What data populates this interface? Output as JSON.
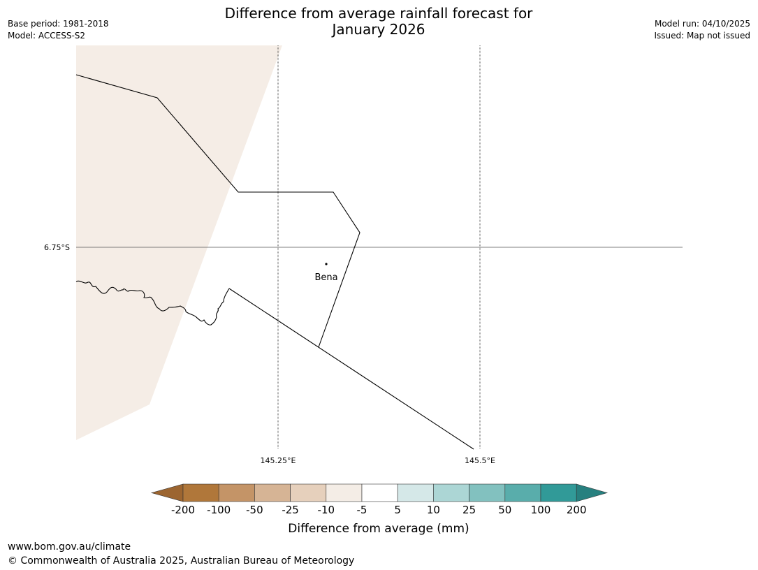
{
  "header": {
    "title_line1": "Difference from average rainfall forecast for",
    "title_line2": "January 2026",
    "base_period": "Base period: 1981-2018",
    "model": "Model: ACCESS-S2",
    "model_run": "Model run: 04/10/2025",
    "issued": "Issued: Map not issued"
  },
  "map": {
    "latitude_label": "6.75°S",
    "longitude_labels": [
      "145.25°E",
      "145.5°E"
    ],
    "place": {
      "name": "Bena"
    },
    "colors": {
      "land_fill": "#f5ede6",
      "boundary": "#000000",
      "gridline": "#555555"
    }
  },
  "legend": {
    "title": "Difference from average (mm)",
    "tick_labels": [
      "-200",
      "-100",
      "-50",
      "-25",
      "-10",
      "-5",
      "5",
      "10",
      "25",
      "50",
      "100",
      "200"
    ],
    "colors": [
      "#9c6530",
      "#b0773a",
      "#c49467",
      "#d6b495",
      "#e6d0bc",
      "#f4ede6",
      "#ffffff",
      "#d5e8e8",
      "#acd6d5",
      "#82c1bf",
      "#59adab",
      "#319a98",
      "#27807f"
    ]
  },
  "footer": {
    "url": "www.bom.gov.au/climate",
    "copyright": "© Commonwealth of Australia 2025, Australian Bureau of Meteorology"
  }
}
